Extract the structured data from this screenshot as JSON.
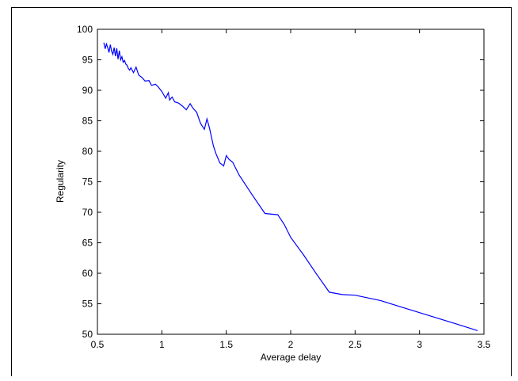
{
  "chart_data": {
    "type": "line",
    "title": "",
    "xlabel": "Average delay",
    "ylabel": "Regularity",
    "xlim": [
      0.5,
      3.5
    ],
    "ylim": [
      50,
      100
    ],
    "xticks": [
      "0.5",
      "1",
      "1.5",
      "2",
      "2.5",
      "3",
      "3.5"
    ],
    "yticks": [
      "50",
      "55",
      "60",
      "65",
      "70",
      "75",
      "80",
      "85",
      "90",
      "95",
      "100"
    ],
    "grid": false,
    "line_color": "#0000ff",
    "series": [
      {
        "x": [
          0.55,
          0.56,
          0.57,
          0.58,
          0.59,
          0.6,
          0.61,
          0.62,
          0.63,
          0.64,
          0.65,
          0.66,
          0.67,
          0.68,
          0.69,
          0.7,
          0.71,
          0.72,
          0.73,
          0.74,
          0.75,
          0.76,
          0.78,
          0.8,
          0.82,
          0.84,
          0.85,
          0.87,
          0.9,
          0.92,
          0.95,
          0.97,
          1.0,
          1.03,
          1.05,
          1.06,
          1.08,
          1.1,
          1.13,
          1.16,
          1.19,
          1.22,
          1.24,
          1.27,
          1.3,
          1.33,
          1.35,
          1.37,
          1.4,
          1.42,
          1.45,
          1.48,
          1.5,
          1.52,
          1.55,
          1.6,
          1.7,
          1.8,
          1.9,
          1.95,
          2.0,
          2.1,
          2.2,
          2.3,
          2.4,
          2.5,
          2.7,
          2.9,
          3.1,
          3.3,
          3.45
        ],
        "y": [
          97.8,
          96.8,
          97.6,
          97.0,
          96.2,
          97.5,
          96.4,
          95.9,
          97.0,
          95.6,
          96.9,
          95.1,
          96.5,
          95.0,
          95.5,
          94.6,
          94.9,
          94.3,
          94.1,
          93.6,
          93.3,
          93.7,
          92.9,
          93.8,
          92.5,
          92.2,
          92.0,
          91.5,
          91.6,
          90.8,
          91.0,
          90.6,
          89.8,
          88.7,
          89.6,
          88.4,
          88.9,
          88.1,
          87.9,
          87.4,
          86.8,
          87.8,
          87.1,
          86.4,
          84.6,
          83.6,
          85.3,
          83.8,
          80.9,
          79.6,
          78.1,
          77.6,
          79.3,
          78.7,
          78.2,
          76.1,
          72.9,
          69.8,
          69.6,
          68.0,
          65.9,
          63.0,
          59.9,
          56.9,
          56.5,
          56.4,
          55.5,
          54.2,
          52.9,
          51.6,
          50.6
        ]
      }
    ]
  }
}
